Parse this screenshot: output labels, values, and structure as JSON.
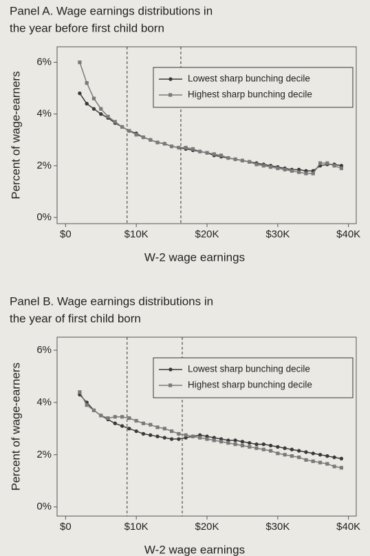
{
  "chart_data": [
    {
      "type": "line",
      "title": [
        "Panel A. Wage earnings distributions in",
        "the year before first child born"
      ],
      "xlabel": "W-2 wage earnings",
      "ylabel": "Percent of wage-earners",
      "x": [
        2000,
        3000,
        4000,
        5000,
        6000,
        7000,
        8000,
        9000,
        10000,
        11000,
        12000,
        13000,
        14000,
        15000,
        16000,
        17000,
        18000,
        19000,
        20000,
        21000,
        22000,
        23000,
        24000,
        25000,
        26000,
        27000,
        28000,
        29000,
        30000,
        31000,
        32000,
        33000,
        34000,
        35000,
        36000,
        37000,
        38000,
        39000
      ],
      "series": [
        {
          "name": "Lowest sharp bunching decile",
          "color": "#3a3a3a",
          "marker": "circle",
          "values": [
            4.8,
            4.4,
            4.2,
            4.0,
            3.85,
            3.65,
            3.5,
            3.35,
            3.25,
            3.1,
            3.0,
            2.9,
            2.85,
            2.75,
            2.7,
            2.65,
            2.6,
            2.55,
            2.5,
            2.4,
            2.35,
            2.3,
            2.25,
            2.2,
            2.15,
            2.1,
            2.05,
            2.0,
            1.95,
            1.9,
            1.85,
            1.85,
            1.8,
            1.8,
            2.0,
            2.05,
            2.05,
            2.0
          ]
        },
        {
          "name": "Highest sharp bunching decile",
          "color": "#7a7a7a",
          "marker": "square",
          "values": [
            6.0,
            5.2,
            4.6,
            4.2,
            3.9,
            3.7,
            3.5,
            3.35,
            3.2,
            3.1,
            3.0,
            2.9,
            2.85,
            2.75,
            2.7,
            2.7,
            2.65,
            2.55,
            2.5,
            2.45,
            2.4,
            2.3,
            2.25,
            2.2,
            2.15,
            2.05,
            2.0,
            1.95,
            1.9,
            1.85,
            1.8,
            1.75,
            1.7,
            1.7,
            2.1,
            2.1,
            2.0,
            1.9
          ]
        }
      ],
      "vlines": [
        8700,
        16300
      ],
      "xlim": [
        -1200,
        41100
      ],
      "xticks": [
        {
          "value": 0,
          "label": "$0"
        },
        {
          "value": 10000,
          "label": "$10K"
        },
        {
          "value": 20000,
          "label": "$20K"
        },
        {
          "value": 30000,
          "label": "$30K"
        },
        {
          "value": 40000,
          "label": "$40K"
        }
      ],
      "ylim": [
        -0.24,
        6.6
      ],
      "yticks": [
        {
          "value": 0,
          "label": "0%"
        },
        {
          "value": 2,
          "label": "2%"
        },
        {
          "value": 4,
          "label": "4%"
        },
        {
          "value": 6,
          "label": "6%"
        }
      ],
      "legend": "upper right"
    },
    {
      "type": "line",
      "title": [
        "Panel B. Wage earnings distributions in",
        "the year of first child born"
      ],
      "xlabel": "W-2 wage earnings",
      "ylabel": "Percent of wage-earners",
      "x": [
        2000,
        3000,
        4000,
        5000,
        6000,
        7000,
        8000,
        9000,
        10000,
        11000,
        12000,
        13000,
        14000,
        15000,
        16000,
        17000,
        18000,
        19000,
        20000,
        21000,
        22000,
        23000,
        24000,
        25000,
        26000,
        27000,
        28000,
        29000,
        30000,
        31000,
        32000,
        33000,
        34000,
        35000,
        36000,
        37000,
        38000,
        39000
      ],
      "series": [
        {
          "name": "Lowest sharp bunching decile",
          "color": "#3a3a3a",
          "marker": "circle",
          "values": [
            4.3,
            4.0,
            3.7,
            3.5,
            3.35,
            3.2,
            3.1,
            3.0,
            2.9,
            2.8,
            2.75,
            2.7,
            2.65,
            2.6,
            2.6,
            2.65,
            2.7,
            2.75,
            2.7,
            2.65,
            2.6,
            2.55,
            2.55,
            2.5,
            2.45,
            2.4,
            2.4,
            2.35,
            2.3,
            2.25,
            2.2,
            2.15,
            2.1,
            2.05,
            2.0,
            1.95,
            1.9,
            1.85
          ]
        },
        {
          "name": "Highest sharp bunching decile",
          "color": "#7a7a7a",
          "marker": "square",
          "values": [
            4.4,
            3.9,
            3.7,
            3.5,
            3.4,
            3.45,
            3.45,
            3.4,
            3.3,
            3.2,
            3.15,
            3.05,
            3.0,
            2.9,
            2.8,
            2.75,
            2.7,
            2.65,
            2.6,
            2.55,
            2.5,
            2.45,
            2.4,
            2.35,
            2.3,
            2.25,
            2.2,
            2.15,
            2.05,
            2.0,
            1.95,
            1.9,
            1.8,
            1.75,
            1.7,
            1.65,
            1.55,
            1.5
          ]
        }
      ],
      "vlines": [
        8700,
        16500
      ],
      "xlim": [
        -1200,
        41100
      ],
      "xticks": [
        {
          "value": 0,
          "label": "$0"
        },
        {
          "value": 10000,
          "label": "$10K"
        },
        {
          "value": 20000,
          "label": "$20K"
        },
        {
          "value": 30000,
          "label": "$30K"
        },
        {
          "value": 40000,
          "label": "$40K"
        }
      ],
      "ylim": [
        -0.35,
        6.5
      ],
      "yticks": [
        {
          "value": 0,
          "label": "0%"
        },
        {
          "value": 2,
          "label": "2%"
        },
        {
          "value": 4,
          "label": "4%"
        },
        {
          "value": 6,
          "label": "6%"
        }
      ],
      "legend": "upper right"
    }
  ]
}
